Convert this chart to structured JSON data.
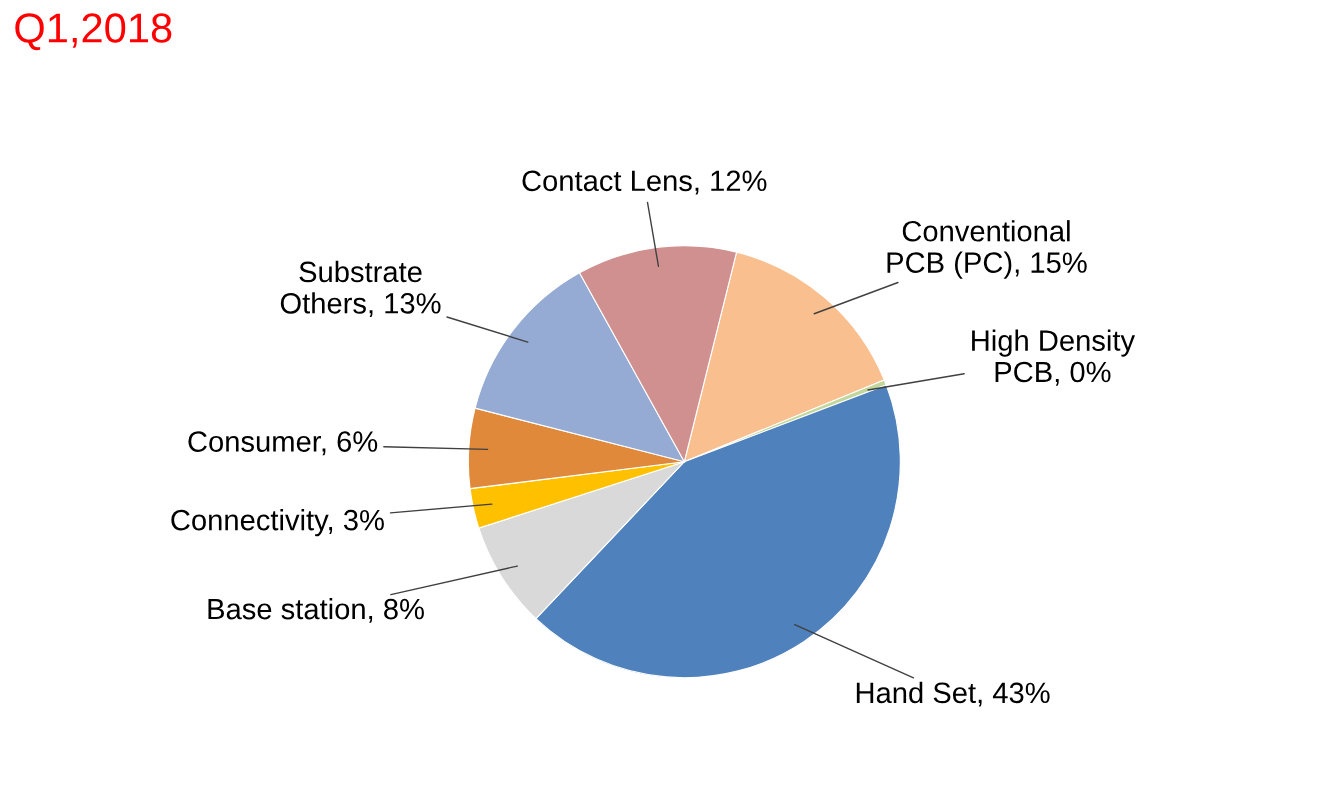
{
  "chart_data": {
    "type": "pie",
    "title": "Q1,2018",
    "categories": [
      "Conventional PCB (PC)",
      "High Density PCB",
      "Hand Set",
      "Base station",
      "Connectivity",
      "Consumer",
      "Substrate Others",
      "Contact Lens"
    ],
    "values": [
      15,
      0.4,
      43,
      8,
      3,
      6,
      13,
      12
    ],
    "value_labels": [
      "15%",
      "0%",
      "43%",
      "8%",
      "3%",
      "6%",
      "13%",
      "12%"
    ],
    "colors": [
      "#f9bf8f",
      "#c3d69b",
      "#4f81bd",
      "#d9d9d9",
      "#ffc000",
      "#e0893b",
      "#95abd4",
      "#d09090"
    ]
  }
}
